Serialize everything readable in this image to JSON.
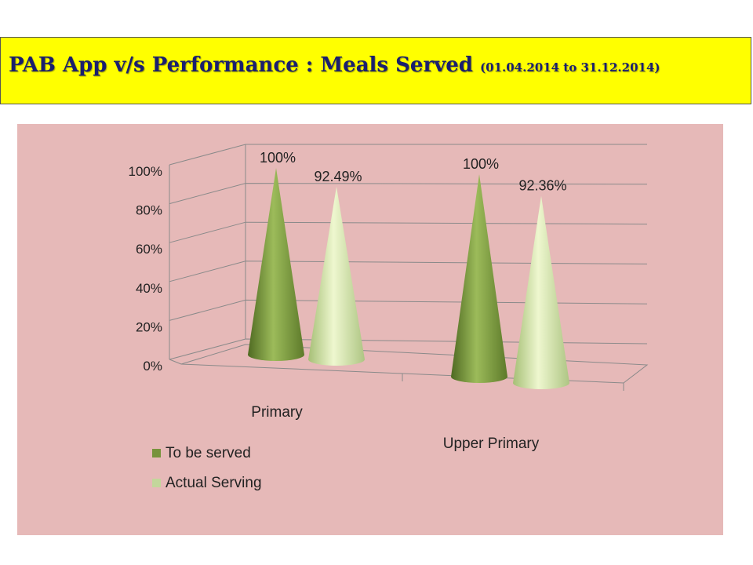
{
  "title": {
    "main": "PAB App v/s Performance  : Meals Served ",
    "sub": "(01.04.2014  to 31.12.2014)"
  },
  "colors": {
    "title_bg": "#ffff00",
    "title_text": "#1a1f6e",
    "chart_bg": "#e6b9b8",
    "series_dark": "#77933c",
    "series_light": "#c3d69b"
  },
  "chart_data": {
    "type": "bar",
    "style": "3d-cone",
    "categories": [
      "Primary",
      "Upper Primary"
    ],
    "series": [
      {
        "name": "To be served",
        "values": [
          100,
          100
        ],
        "labels": [
          "100%",
          "100%"
        ]
      },
      {
        "name": "Actual Serving",
        "values": [
          92.49,
          92.36
        ],
        "labels": [
          "92.49%",
          "92.36%"
        ]
      }
    ],
    "y_ticks": [
      "0%",
      "20%",
      "40%",
      "60%",
      "80%",
      "100%"
    ],
    "ylim": [
      0,
      100
    ],
    "grid": true,
    "legend_position": "bottom-left"
  }
}
